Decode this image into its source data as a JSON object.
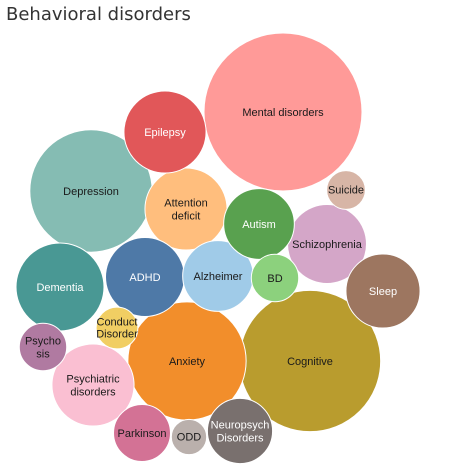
{
  "chart_data": {
    "type": "bubble",
    "title": "Behavioral disorders",
    "bubbles": [
      {
        "name": "Mental disorders",
        "value": 100,
        "color": "#FF9A98"
      },
      {
        "name": "Cognitive",
        "value": 80,
        "color": "#B99C2E"
      },
      {
        "name": "Depression",
        "value": 60,
        "color": "#85BCB3"
      },
      {
        "name": "Anxiety",
        "value": 56,
        "color": "#F28E2B"
      },
      {
        "name": "Attention deficit",
        "value": 27,
        "color": "#FFBE7D"
      },
      {
        "name": "Dementia",
        "value": 31,
        "color": "#499894"
      },
      {
        "name": "ADHD",
        "value": 25,
        "color": "#4E79A7"
      },
      {
        "name": "Alzheimer",
        "value": 20,
        "color": "#A0CBE8"
      },
      {
        "name": "Schizophrenia",
        "value": 25,
        "color": "#D4A6C8"
      },
      {
        "name": "Epilepsy",
        "value": 27,
        "color": "#E15759"
      },
      {
        "name": "Autism",
        "value": 20,
        "color": "#59A14F"
      },
      {
        "name": "Psychiatric disorders",
        "value": 27,
        "color": "#FABFD2"
      },
      {
        "name": "Sleep",
        "value": 22,
        "color": "#9D7660"
      },
      {
        "name": "Neuropsych Disorders",
        "value": 17,
        "color": "#79706E"
      },
      {
        "name": "Parkinson",
        "value": 13,
        "color": "#D37295"
      },
      {
        "name": "BD",
        "value": 9,
        "color": "#8CD17D"
      },
      {
        "name": "Psychosis",
        "value": 9,
        "color": "#B07AA1"
      },
      {
        "name": "Conduct Disorder",
        "value": 7,
        "color": "#F1CE63"
      },
      {
        "name": "Suicide",
        "value": 6,
        "color": "#D7B5A6"
      },
      {
        "name": "ODD",
        "value": 5,
        "color": "#BAB0AC"
      }
    ]
  }
}
